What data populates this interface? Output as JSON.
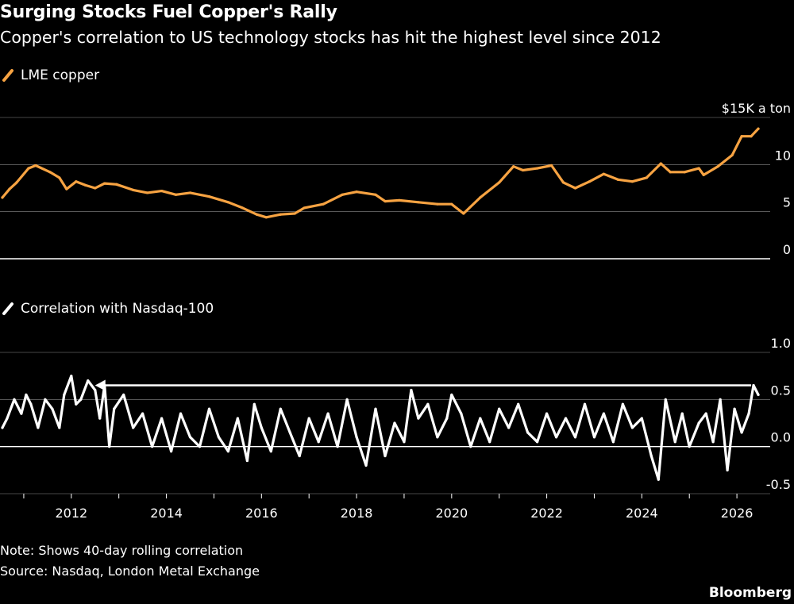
{
  "title": "Surging Stocks Fuel Copper's Rally",
  "subtitle": "Copper's correlation to US technology stocks has hit the highest level since 2012",
  "note": "Note: Shows 40-day rolling correlation",
  "source": "Source: Nasdaq, London Metal Exchange",
  "brand": "Bloomberg",
  "colors": {
    "background": "#000000",
    "copper": "#F7A342",
    "correlation": "#FFFFFF",
    "grid": "#FFFFFF"
  },
  "chart_data": [
    {
      "type": "line",
      "legend_placement": "top-left",
      "series": [
        {
          "name": "LME copper",
          "color": "#F7A342",
          "x": [
            2010.55,
            2010.7,
            2010.85,
            2011.1,
            2011.25,
            2011.55,
            2011.75,
            2011.9,
            2012.1,
            2012.3,
            2012.5,
            2012.7,
            2012.95,
            2013.3,
            2013.6,
            2013.9,
            2014.2,
            2014.5,
            2014.9,
            2015.3,
            2015.6,
            2015.9,
            2016.1,
            2016.4,
            2016.7,
            2016.9,
            2017.3,
            2017.7,
            2018.0,
            2018.4,
            2018.6,
            2018.9,
            2019.3,
            2019.7,
            2020.0,
            2020.25,
            2020.6,
            2021.0,
            2021.3,
            2021.5,
            2021.8,
            2022.1,
            2022.35,
            2022.6,
            2022.9,
            2023.2,
            2023.5,
            2023.8,
            2024.1,
            2024.4,
            2024.6,
            2024.9,
            2025.2,
            2025.3,
            2025.6,
            2025.9,
            2026.1,
            2026.3,
            2026.45
          ],
          "values": [
            6.5,
            7.4,
            8.1,
            9.6,
            9.9,
            9.2,
            8.6,
            7.4,
            8.2,
            7.8,
            7.5,
            8.0,
            7.9,
            7.3,
            7.0,
            7.2,
            6.8,
            7.0,
            6.6,
            6.0,
            5.4,
            4.7,
            4.4,
            4.7,
            4.8,
            5.4,
            5.8,
            6.8,
            7.1,
            6.8,
            6.1,
            6.2,
            6.0,
            5.8,
            5.8,
            4.8,
            6.5,
            8.1,
            9.8,
            9.4,
            9.6,
            9.9,
            8.1,
            7.5,
            8.2,
            9.0,
            8.4,
            8.2,
            8.6,
            10.1,
            9.2,
            9.2,
            9.6,
            8.9,
            9.8,
            11.0,
            13.0,
            13.0,
            13.8
          ]
        }
      ],
      "y_ticks": [
        "$15K a ton",
        "10",
        "5",
        "0"
      ],
      "ylim": [
        0,
        15
      ]
    },
    {
      "type": "line",
      "legend_placement": "top-left",
      "series": [
        {
          "name": "Correlation with Nasdaq-100",
          "color": "#FFFFFF",
          "x": [
            2010.55,
            2010.65,
            2010.8,
            2010.95,
            2011.05,
            2011.15,
            2011.3,
            2011.45,
            2011.6,
            2011.75,
            2011.85,
            2012.0,
            2012.1,
            2012.2,
            2012.35,
            2012.5,
            2012.6,
            2012.7,
            2012.8,
            2012.9,
            2013.1,
            2013.3,
            2013.5,
            2013.7,
            2013.9,
            2014.1,
            2014.3,
            2014.5,
            2014.7,
            2014.9,
            2015.1,
            2015.3,
            2015.5,
            2015.7,
            2015.85,
            2016.0,
            2016.2,
            2016.4,
            2016.6,
            2016.8,
            2017.0,
            2017.2,
            2017.4,
            2017.6,
            2017.8,
            2018.0,
            2018.2,
            2018.4,
            2018.6,
            2018.8,
            2019.0,
            2019.15,
            2019.3,
            2019.5,
            2019.7,
            2019.9,
            2020.0,
            2020.2,
            2020.4,
            2020.6,
            2020.8,
            2021.0,
            2021.2,
            2021.4,
            2021.6,
            2021.8,
            2022.0,
            2022.2,
            2022.4,
            2022.6,
            2022.8,
            2023.0,
            2023.2,
            2023.4,
            2023.6,
            2023.8,
            2024.0,
            2024.2,
            2024.35,
            2024.5,
            2024.7,
            2024.85,
            2025.0,
            2025.2,
            2025.35,
            2025.5,
            2025.65,
            2025.8,
            2025.95,
            2026.1,
            2026.25,
            2026.35,
            2026.45
          ],
          "values": [
            0.2,
            0.3,
            0.5,
            0.35,
            0.55,
            0.45,
            0.2,
            0.5,
            0.4,
            0.2,
            0.55,
            0.75,
            0.45,
            0.5,
            0.7,
            0.6,
            0.3,
            0.65,
            0.0,
            0.4,
            0.55,
            0.2,
            0.35,
            0.0,
            0.3,
            -0.05,
            0.35,
            0.1,
            0.0,
            0.4,
            0.1,
            -0.05,
            0.3,
            -0.15,
            0.45,
            0.2,
            -0.05,
            0.4,
            0.15,
            -0.1,
            0.3,
            0.05,
            0.35,
            0.0,
            0.5,
            0.1,
            -0.2,
            0.4,
            -0.1,
            0.25,
            0.05,
            0.6,
            0.3,
            0.45,
            0.1,
            0.3,
            0.55,
            0.35,
            0.0,
            0.3,
            0.05,
            0.4,
            0.2,
            0.45,
            0.15,
            0.05,
            0.35,
            0.1,
            0.3,
            0.1,
            0.45,
            0.1,
            0.35,
            0.05,
            0.45,
            0.2,
            0.3,
            -0.1,
            -0.35,
            0.5,
            0.05,
            0.35,
            0.0,
            0.25,
            0.35,
            0.05,
            0.5,
            -0.25,
            0.4,
            0.15,
            0.35,
            0.65,
            0.55
          ]
        }
      ],
      "annotation": {
        "type": "arrow",
        "x_from": 2026.3,
        "x_to": 2012.5,
        "y": 0.65
      },
      "y_ticks": [
        "1.0",
        "0.5",
        "0.0",
        "-0.5"
      ],
      "ylim": [
        -0.5,
        1.0
      ]
    }
  ],
  "x_axis": {
    "ticks": [
      "2012",
      "2014",
      "2016",
      "2018",
      "2020",
      "2022",
      "2024",
      "2026"
    ],
    "xlim": [
      2010.5,
      2026.7
    ]
  }
}
